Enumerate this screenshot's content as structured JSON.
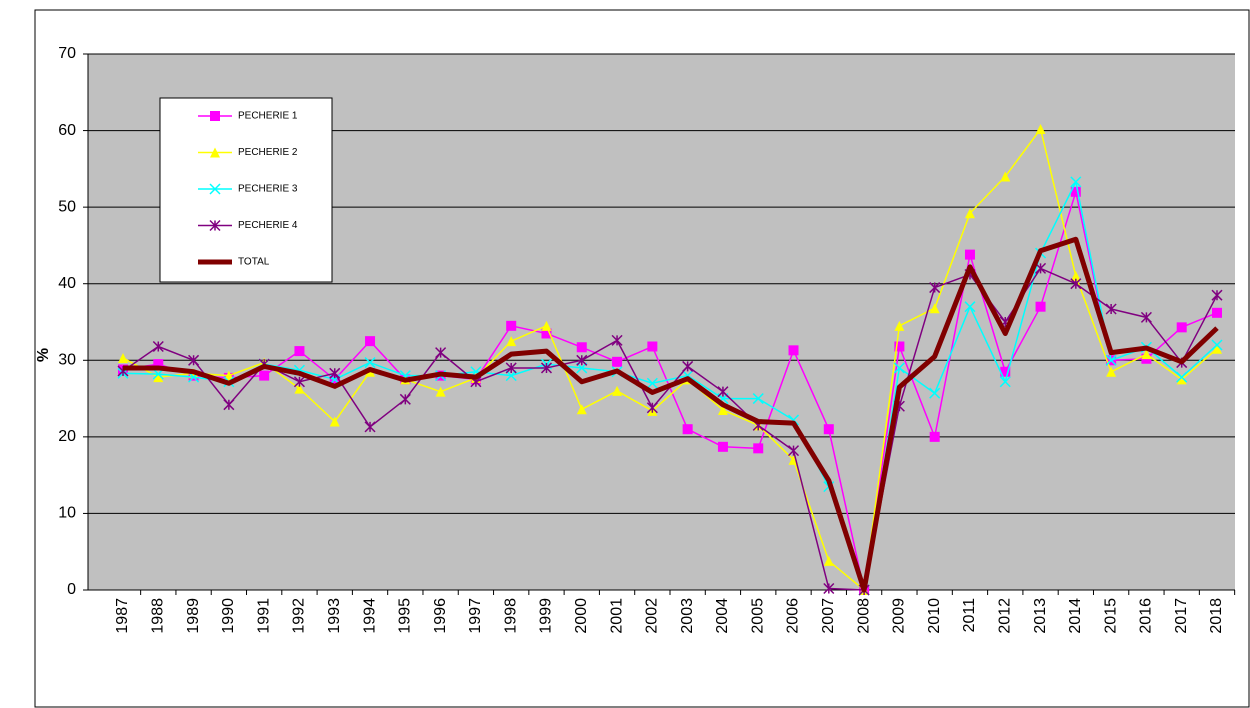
{
  "chart_data": {
    "type": "line",
    "y_label": "%",
    "categories": [
      "1987",
      "1988",
      "1989",
      "1990",
      "1991",
      "1992",
      "1993",
      "1994",
      "1995",
      "1996",
      "1997",
      "1998",
      "1999",
      "2000",
      "2001",
      "2002",
      "2003",
      "2004",
      "2005",
      "2006",
      "2007",
      "2008",
      "2009",
      "2010",
      "2011",
      "2012",
      "2013",
      "2014",
      "2015",
      "2016",
      "2017",
      "2018"
    ],
    "ylim": [
      0,
      70
    ],
    "yticks": [
      0,
      10,
      20,
      30,
      40,
      50,
      60,
      70
    ],
    "grid": true,
    "legend": "top-left",
    "series": [
      {
        "name": "PECHERIE 1",
        "color": "#ff00ff",
        "marker": "square",
        "values": [
          28.8,
          29.5,
          28,
          27.7,
          28,
          31.2,
          27.5,
          32.5,
          27.5,
          28,
          27.5,
          34.5,
          33.5,
          31.7,
          29.8,
          31.8,
          21,
          18.7,
          18.5,
          31.3,
          21,
          0,
          31.8,
          20,
          43.8,
          28.5,
          37,
          52,
          30,
          30.2,
          34.3,
          36.2
        ]
      },
      {
        "name": "PECHERIE 2",
        "color": "#ffff00",
        "marker": "triangle",
        "values": [
          30.3,
          27.8,
          28.3,
          28,
          29.7,
          26.3,
          22,
          28.5,
          27.5,
          25.9,
          27.7,
          32.5,
          34.5,
          23.6,
          26,
          23.4,
          27.5,
          23.5,
          21.5,
          17,
          3.8,
          0,
          34.5,
          36.8,
          49.2,
          54,
          60.2,
          41,
          28.5,
          30.8,
          27.5,
          31.5
        ]
      },
      {
        "name": "PECHERIE 3",
        "color": "#00ffff",
        "marker": "x",
        "values": [
          28.3,
          28.2,
          27.8,
          27.2,
          29.5,
          28.7,
          27.5,
          29.7,
          28,
          28,
          28.5,
          28,
          29.5,
          29,
          28.5,
          27,
          28,
          25,
          25,
          22.2,
          13.5,
          0,
          29,
          25.7,
          37,
          27.2,
          44,
          53.3,
          30,
          31.7,
          27.8,
          32
        ]
      },
      {
        "name": "PECHERIE 4",
        "color": "#800080",
        "marker": "star",
        "values": [
          28.6,
          31.8,
          30,
          24.2,
          29.5,
          27.2,
          28.3,
          21.3,
          24.9,
          31,
          27.2,
          29,
          29,
          30,
          32.6,
          23.8,
          29.2,
          25.9,
          21.5,
          18.2,
          0.2,
          0,
          24,
          39.5,
          41.2,
          35,
          42,
          40,
          36.7,
          35.6,
          29.7,
          38.5
        ]
      },
      {
        "name": "TOTAL",
        "color": "#800000",
        "marker": "none",
        "width": 5,
        "values": [
          29,
          29,
          28.5,
          27,
          29.2,
          28.3,
          26.6,
          28.8,
          27.4,
          28.2,
          27.8,
          30.8,
          31.2,
          27.2,
          28.6,
          25.8,
          27.6,
          24.2,
          22,
          21.8,
          14.3,
          0,
          26.5,
          30.5,
          42.2,
          33.5,
          44.3,
          45.8,
          31,
          31.6,
          29.8,
          34.2
        ]
      }
    ]
  }
}
